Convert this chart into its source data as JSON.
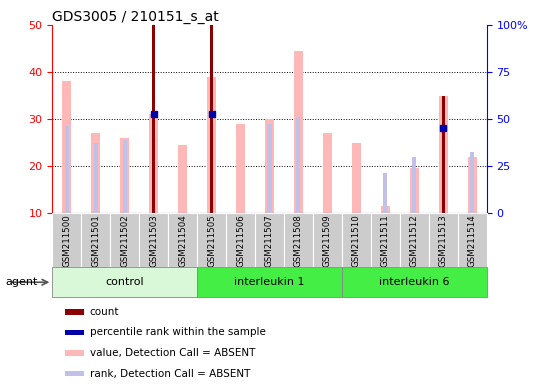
{
  "title": "GDS3005 / 210151_s_at",
  "samples": [
    "GSM211500",
    "GSM211501",
    "GSM211502",
    "GSM211503",
    "GSM211504",
    "GSM211505",
    "GSM211506",
    "GSM211507",
    "GSM211508",
    "GSM211509",
    "GSM211510",
    "GSM211511",
    "GSM211512",
    "GSM211513",
    "GSM211514"
  ],
  "groups": [
    {
      "name": "control",
      "start": 0,
      "end": 5
    },
    {
      "name": "interleukin 1",
      "start": 5,
      "end": 10
    },
    {
      "name": "interleukin 6",
      "start": 10,
      "end": 15
    }
  ],
  "group_colors": [
    "#d8f8d8",
    "#44ee44",
    "#44ee44"
  ],
  "value_bars": [
    38,
    27,
    26,
    31,
    24.5,
    39,
    29,
    30,
    44.5,
    27,
    25,
    11.5,
    19.5,
    35,
    22
  ],
  "rank_bars": [
    28.5,
    25,
    25.5,
    26,
    null,
    29,
    null,
    29,
    30.5,
    null,
    null,
    18.5,
    22,
    28,
    23
  ],
  "count_heights": [
    null,
    null,
    null,
    50,
    null,
    50,
    null,
    null,
    null,
    null,
    null,
    null,
    null,
    35,
    null
  ],
  "percentile_at": [
    null,
    null,
    null,
    31,
    null,
    31,
    null,
    null,
    null,
    null,
    null,
    null,
    null,
    28,
    null
  ],
  "ylim_left": [
    10,
    50
  ],
  "ylim_right": [
    0,
    100
  ],
  "yticks_left": [
    10,
    20,
    30,
    40,
    50
  ],
  "yticks_right": [
    0,
    25,
    50,
    75,
    100
  ],
  "ytick_labels_right": [
    "0",
    "25",
    "50",
    "75",
    "100%"
  ],
  "grid_lines": [
    20,
    30,
    40
  ],
  "value_color": "#ffb8b8",
  "rank_color": "#c0c0e8",
  "count_color": "#8b0000",
  "pct_color": "#0000aa",
  "xlabel_bg": "#cccccc",
  "agent_label": "agent",
  "legend_items": [
    {
      "color": "#8b0000",
      "label": "count"
    },
    {
      "color": "#0000aa",
      "label": "percentile rank within the sample"
    },
    {
      "color": "#ffb8b8",
      "label": "value, Detection Call = ABSENT"
    },
    {
      "color": "#c0c0e8",
      "label": "rank, Detection Call = ABSENT"
    }
  ]
}
